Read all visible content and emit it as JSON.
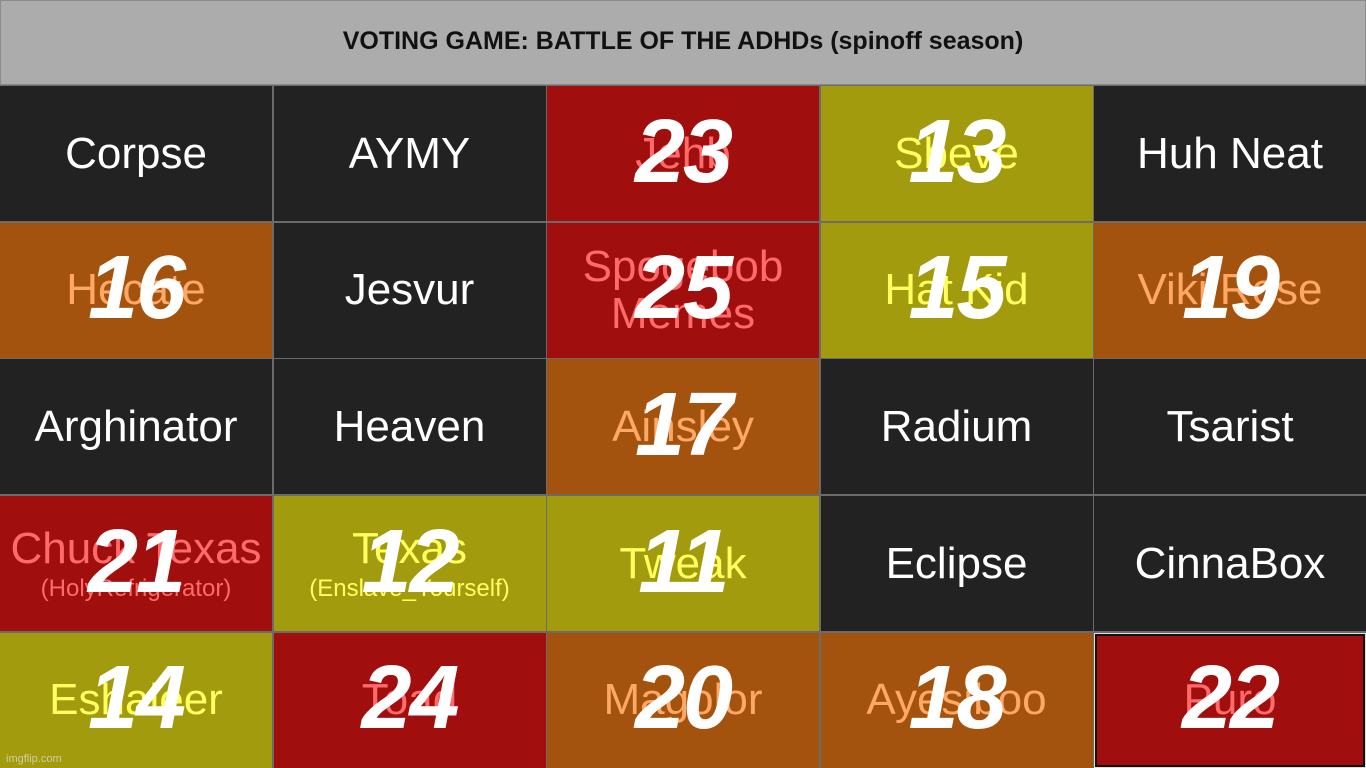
{
  "title": "VOTING GAME: BATTLE OF THE ADHDs (spinoff season)",
  "colors": {
    "dark": "#222222",
    "red": "#a10e0e",
    "orange": "#a4530e",
    "olive": "#a39b0e",
    "text_dark": "#ffffff",
    "text_red": "#ff6a6a",
    "text_orange": "#ffa866",
    "text_olive": "#ffff60"
  },
  "watermark": "imgflip.com",
  "cells": [
    {
      "name": "Corpse",
      "color": "dark"
    },
    {
      "name": "AYMY",
      "color": "dark"
    },
    {
      "name": "Jehb",
      "color": "red",
      "number": "23"
    },
    {
      "name": "Sbeve",
      "color": "olive",
      "number": "13"
    },
    {
      "name": "Huh Neat",
      "color": "dark"
    },
    {
      "name": "Hecate",
      "color": "orange",
      "number": "16"
    },
    {
      "name": "Jesvur",
      "color": "dark"
    },
    {
      "name": "Spogebob Memes",
      "color": "red",
      "number": "25"
    },
    {
      "name": "Hat Kid",
      "color": "olive",
      "number": "15"
    },
    {
      "name": "Viki Rose",
      "color": "orange",
      "number": "19"
    },
    {
      "name": "Arghinator",
      "color": "dark"
    },
    {
      "name": "Heaven",
      "color": "dark"
    },
    {
      "name": "Ainsley",
      "color": "orange",
      "number": "17"
    },
    {
      "name": "Radium",
      "color": "dark"
    },
    {
      "name": "Tsarist",
      "color": "dark"
    },
    {
      "name": "Chuck Texas",
      "sub": "(HolyRefrigerator)",
      "color": "red",
      "number": "21"
    },
    {
      "name": "Texas",
      "sub": "(Enslave_Yourself)",
      "color": "olive",
      "number": "12"
    },
    {
      "name": "Tweak",
      "color": "olive",
      "number": "11"
    },
    {
      "name": "Eclipse",
      "color": "dark"
    },
    {
      "name": "CinnaBox",
      "color": "dark"
    },
    {
      "name": "Eshaleer",
      "color": "olive",
      "number": "14"
    },
    {
      "name": "Toad",
      "color": "red",
      "number": "24"
    },
    {
      "name": "Magolor",
      "color": "orange",
      "number": "20"
    },
    {
      "name": "Ayesiboo",
      "color": "orange",
      "number": "18"
    },
    {
      "name": "Puro",
      "color": "red",
      "number": "22",
      "selected": true
    }
  ]
}
